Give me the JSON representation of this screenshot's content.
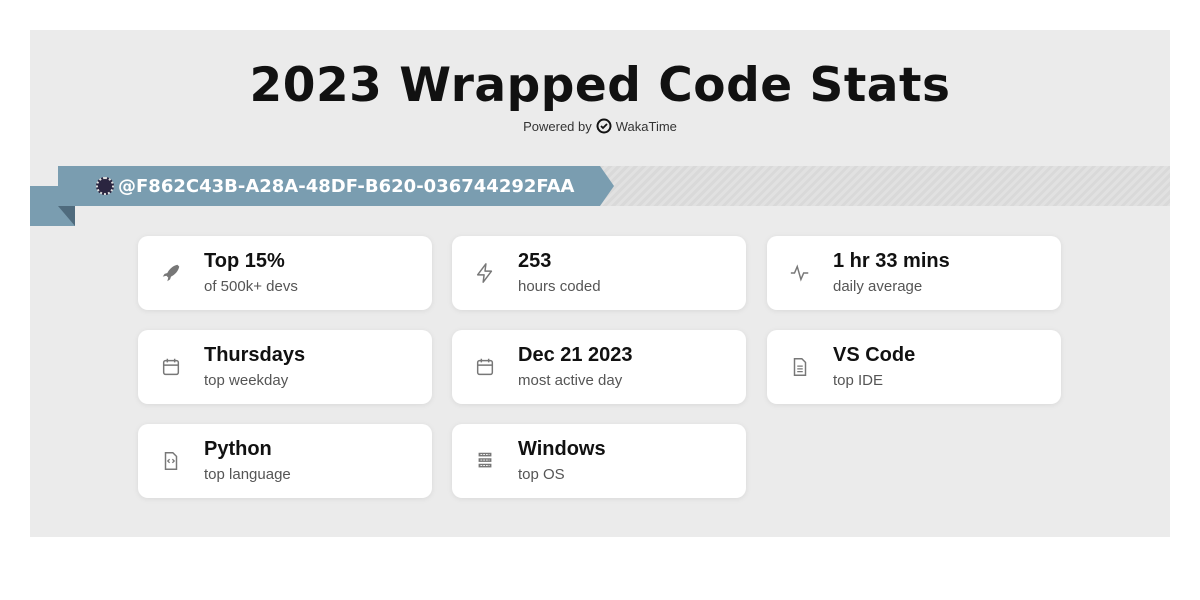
{
  "title": "2023 Wrapped Code Stats",
  "powered_by": {
    "prefix": "Powered by",
    "brand": "WakaTime"
  },
  "user": {
    "handle": "@F862C43B-A28A-48DF-B620-036744292FAA"
  },
  "colors": {
    "ribbon": "#7a9db0",
    "background": "#ebebeb"
  },
  "stats": [
    {
      "icon": "rocket-icon",
      "value": "Top 15%",
      "label": "of 500k+ devs"
    },
    {
      "icon": "lightning-icon",
      "value": "253",
      "label": "hours coded"
    },
    {
      "icon": "activity-icon",
      "value": "1 hr 33 mins",
      "label": "daily average"
    },
    {
      "icon": "calendar-icon",
      "value": "Thursdays",
      "label": "top weekday"
    },
    {
      "icon": "calendar-icon",
      "value": "Dec 21 2023",
      "label": "most active day"
    },
    {
      "icon": "document-icon",
      "value": "VS Code",
      "label": "top IDE"
    },
    {
      "icon": "code-file-icon",
      "value": "Python",
      "label": "top language"
    },
    {
      "icon": "server-icon",
      "value": "Windows",
      "label": "top OS"
    }
  ]
}
